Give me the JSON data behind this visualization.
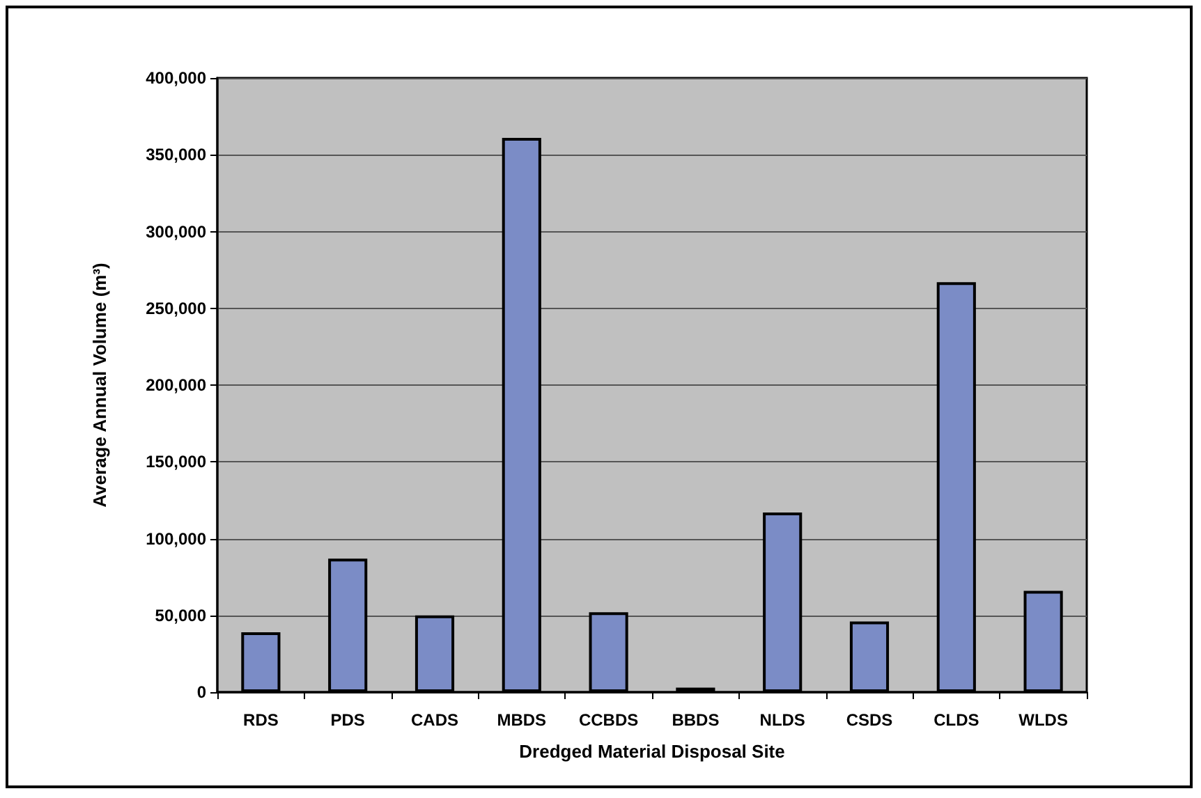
{
  "chart_data": {
    "type": "bar",
    "xlabel": "Dredged Material Disposal Site",
    "ylabel": "Average Annual Volume (m³)",
    "categories": [
      "RDS",
      "PDS",
      "CADS",
      "MBDS",
      "CCBDS",
      "BBDS",
      "NLDS",
      "CSDS",
      "CLDS",
      "WLDS"
    ],
    "values": [
      39000,
      87000,
      50000,
      361000,
      52000,
      3000,
      117000,
      46000,
      267000,
      66000
    ],
    "color": "#7b8cc6",
    "ylim": [
      0,
      400000
    ],
    "yticks": [
      0,
      {
        "value": 50000,
        "label": "50,000"
      },
      {
        "value": 100000,
        "label": "100,000"
      },
      {
        "value": 150000,
        "label": "150,000"
      },
      {
        "value": 200000,
        "label": "200,000"
      },
      {
        "value": 250000,
        "label": "250,000"
      },
      {
        "value": 300000,
        "label": "300,000"
      },
      {
        "value": 350000,
        "label": "350,000"
      },
      {
        "value": 400000,
        "label": "400,000"
      }
    ],
    "grid": "y"
  }
}
